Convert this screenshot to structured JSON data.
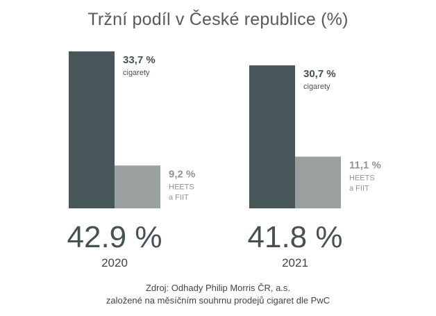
{
  "chart_data": {
    "type": "bar",
    "title": "Tržní podíl v České republice (%)",
    "colors": {
      "cigarety": "#475658",
      "heets": "#9a9fa0",
      "total": "#465154",
      "label_dark": "#465154",
      "label_light": "#8f9496"
    },
    "groups": [
      {
        "year": "2020",
        "total_label": "42.9 %",
        "bars": [
          {
            "series": "cigarety",
            "value": 33.7,
            "value_label": "33,7 %",
            "name_lines": [
              "cigarety"
            ]
          },
          {
            "series": "heets",
            "value": 9.2,
            "value_label": "9,2 %",
            "name_lines": [
              "HEETS",
              "a FIIT"
            ]
          }
        ]
      },
      {
        "year": "2021",
        "total_label": "41.8 %",
        "bars": [
          {
            "series": "cigarety",
            "value": 30.7,
            "value_label": "30,7 %",
            "name_lines": [
              "cigarety"
            ]
          },
          {
            "series": "heets",
            "value": 11.1,
            "value_label": "11,1 %",
            "name_lines": [
              "HEETS",
              "a FIIT"
            ]
          }
        ]
      }
    ]
  },
  "source": {
    "line1": "Zdroj: Odhady Philip Morris ČR, a.s.",
    "line2": "založené na měsíčním souhrnu prodejů cigaret dle PwC"
  }
}
